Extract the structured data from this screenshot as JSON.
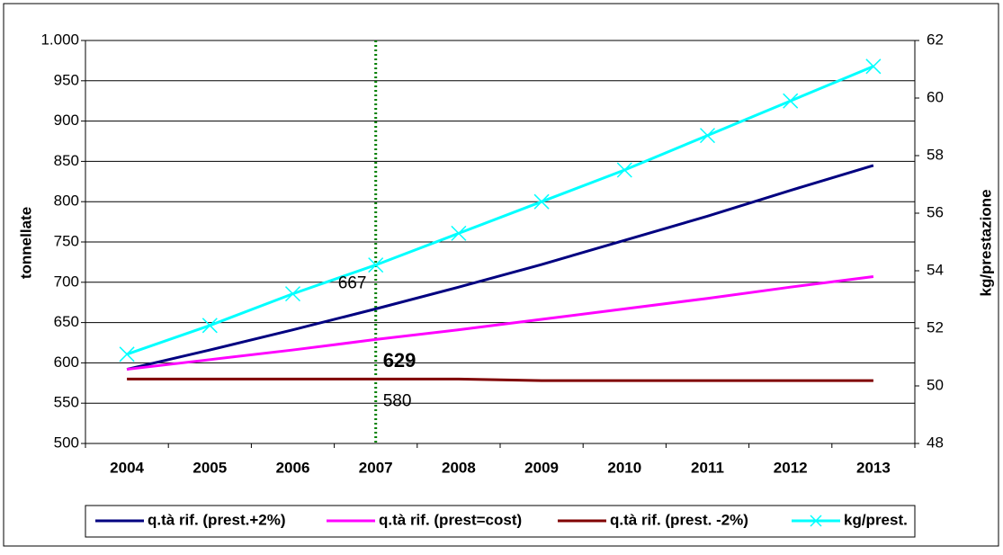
{
  "chart_data": {
    "type": "line",
    "categories": [
      "2004",
      "2005",
      "2006",
      "2007",
      "2008",
      "2009",
      "2010",
      "2011",
      "2012",
      "2013"
    ],
    "ylabel": "tonnellate",
    "y2label": "kg/prestazione",
    "ylim": [
      500,
      1000
    ],
    "yticks": [
      500,
      550,
      600,
      650,
      700,
      750,
      800,
      850,
      900,
      950,
      {
        "value": 1000,
        "label": "1.000"
      }
    ],
    "y2lim": [
      48,
      62
    ],
    "y2ticks": [
      48,
      50,
      52,
      54,
      56,
      58,
      60,
      62
    ],
    "grid": true,
    "series": [
      {
        "name": "q.tà rif. (prest.+2%)",
        "color": "#000080",
        "values": [
          592,
          616,
          641,
          667,
          694,
          722,
          752,
          782,
          814,
          845
        ]
      },
      {
        "name": "q.tà rif. (prest=cost)",
        "color": "#ff00ff",
        "values": [
          592,
          604,
          616,
          629,
          641,
          654,
          667,
          680,
          694,
          707
        ]
      },
      {
        "name": "q.tà rif. (prest. -2%)",
        "color": "#800000",
        "values": [
          580,
          580,
          580,
          580,
          580,
          578,
          578,
          578,
          578,
          578
        ]
      },
      {
        "name": "kg/prest.",
        "color": "#00ffff",
        "axis": "y2",
        "marker": "x",
        "values": [
          51.1,
          52.1,
          53.2,
          54.2,
          55.3,
          56.4,
          57.5,
          58.7,
          59.9,
          61.1
        ]
      }
    ],
    "vertical_line": {
      "at": "2007",
      "color": "#008000"
    },
    "annotations": [
      667,
      629,
      580
    ],
    "legend": "bottom"
  }
}
